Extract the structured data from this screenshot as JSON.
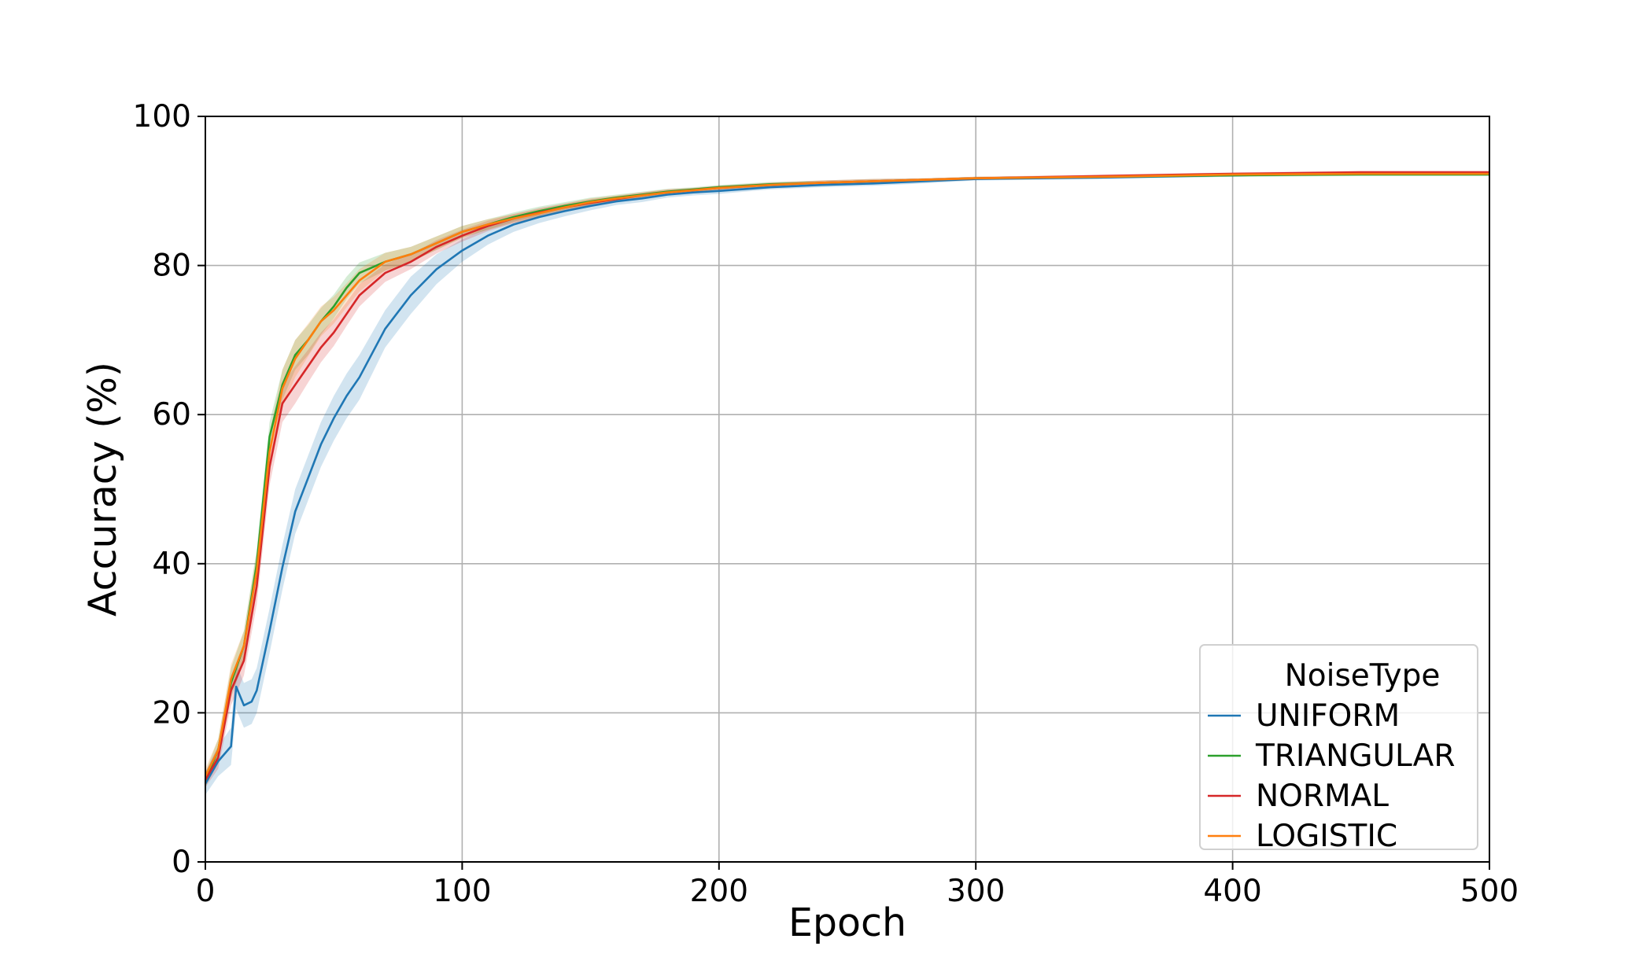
{
  "chart_data": {
    "type": "line",
    "title": "",
    "xlabel": "Epoch",
    "ylabel": "Accuracy (%)",
    "xlim": [
      0,
      500
    ],
    "ylim": [
      0,
      100
    ],
    "xticks": [
      "0",
      "100",
      "200",
      "300",
      "400",
      "500"
    ],
    "yticks": [
      "0",
      "20",
      "40",
      "60",
      "80",
      "100"
    ],
    "grid": true,
    "legend": {
      "title": "NoiseType",
      "placement": "lower right"
    },
    "confidence_band": true,
    "series": [
      {
        "name": "UNIFORM",
        "color": "#1f77b4",
        "x": [
          0,
          5,
          10,
          12,
          15,
          18,
          20,
          25,
          30,
          35,
          40,
          45,
          50,
          55,
          60,
          70,
          80,
          90,
          100,
          110,
          120,
          130,
          140,
          150,
          160,
          170,
          180,
          190,
          200,
          220,
          240,
          260,
          280,
          300,
          350,
          400,
          450,
          500
        ],
        "y": [
          10.5,
          13.5,
          15.5,
          23.5,
          21.0,
          21.5,
          23.0,
          31.0,
          39.5,
          47.0,
          51.5,
          56.0,
          59.5,
          62.5,
          65.0,
          71.5,
          76.0,
          79.5,
          82.0,
          84.0,
          85.5,
          86.5,
          87.3,
          88.0,
          88.6,
          89.0,
          89.5,
          89.8,
          90.0,
          90.5,
          90.8,
          91.0,
          91.3,
          91.6,
          91.8,
          92.1,
          92.3,
          92.3
        ],
        "band": [
          1.5,
          2.0,
          2.5,
          3.0,
          3.0,
          3.0,
          3.0,
          3.0,
          3.0,
          3.0,
          3.0,
          3.0,
          3.0,
          3.0,
          3.0,
          2.5,
          2.5,
          2.0,
          1.5,
          1.2,
          1.0,
          0.8,
          0.7,
          0.6,
          0.5,
          0.5,
          0.4,
          0.4,
          0.4,
          0.3,
          0.3,
          0.3,
          0.3,
          0.2,
          0.2,
          0.2,
          0.2,
          0.2
        ]
      },
      {
        "name": "TRIANGULAR",
        "color": "#2ca02c",
        "x": [
          0,
          5,
          10,
          15,
          20,
          25,
          30,
          35,
          40,
          45,
          50,
          55,
          60,
          70,
          80,
          90,
          100,
          110,
          120,
          130,
          140,
          150,
          160,
          170,
          180,
          190,
          200,
          220,
          240,
          260,
          280,
          300,
          350,
          400,
          450,
          500
        ],
        "y": [
          11.0,
          15.0,
          24.0,
          29.0,
          40.0,
          57.0,
          64.0,
          68.0,
          70.0,
          72.5,
          74.5,
          77.0,
          79.0,
          80.5,
          81.5,
          83.0,
          84.5,
          85.5,
          86.5,
          87.3,
          88.0,
          88.6,
          89.1,
          89.5,
          89.9,
          90.2,
          90.5,
          90.9,
          91.1,
          91.3,
          91.5,
          91.7,
          91.9,
          92.1,
          92.2,
          92.2
        ],
        "band": [
          1.0,
          1.5,
          2.0,
          2.0,
          2.0,
          2.0,
          2.0,
          2.0,
          2.0,
          1.8,
          1.6,
          1.5,
          1.4,
          1.2,
          1.0,
          0.9,
          0.8,
          0.7,
          0.6,
          0.6,
          0.5,
          0.5,
          0.4,
          0.4,
          0.4,
          0.3,
          0.3,
          0.3,
          0.3,
          0.3,
          0.2,
          0.2,
          0.2,
          0.2,
          0.2,
          0.2
        ]
      },
      {
        "name": "NORMAL",
        "color": "#d62728",
        "x": [
          0,
          5,
          10,
          15,
          20,
          25,
          30,
          35,
          40,
          45,
          50,
          55,
          60,
          70,
          80,
          90,
          100,
          110,
          120,
          130,
          140,
          150,
          160,
          170,
          180,
          190,
          200,
          220,
          240,
          260,
          280,
          300,
          350,
          400,
          450,
          500
        ],
        "y": [
          11.0,
          14.0,
          23.0,
          27.0,
          37.0,
          53.0,
          61.5,
          64.0,
          66.5,
          69.0,
          71.0,
          73.5,
          76.0,
          79.0,
          80.5,
          82.5,
          84.0,
          85.3,
          86.3,
          87.1,
          87.8,
          88.4,
          88.9,
          89.4,
          89.8,
          90.1,
          90.4,
          90.8,
          91.1,
          91.3,
          91.5,
          91.7,
          92.0,
          92.3,
          92.5,
          92.5
        ],
        "band": [
          1.0,
          1.5,
          2.0,
          2.0,
          2.5,
          2.5,
          2.5,
          2.5,
          2.2,
          2.0,
          1.8,
          1.6,
          1.5,
          1.2,
          1.0,
          0.9,
          0.8,
          0.7,
          0.6,
          0.6,
          0.5,
          0.5,
          0.4,
          0.4,
          0.4,
          0.3,
          0.3,
          0.3,
          0.3,
          0.3,
          0.2,
          0.2,
          0.2,
          0.2,
          0.2,
          0.2
        ]
      },
      {
        "name": "LOGISTIC",
        "color": "#ff7f0e",
        "x": [
          0,
          5,
          10,
          15,
          20,
          25,
          30,
          35,
          40,
          45,
          50,
          55,
          60,
          70,
          80,
          90,
          100,
          110,
          120,
          130,
          140,
          150,
          160,
          170,
          180,
          190,
          200,
          220,
          240,
          260,
          280,
          300,
          350,
          400,
          450,
          500
        ],
        "y": [
          11.5,
          15.0,
          24.5,
          29.0,
          39.0,
          55.0,
          63.5,
          67.5,
          70.0,
          72.5,
          74.0,
          76.0,
          78.0,
          80.5,
          81.5,
          83.0,
          84.5,
          85.5,
          86.3,
          87.0,
          87.8,
          88.5,
          89.0,
          89.4,
          89.8,
          90.1,
          90.4,
          90.8,
          91.1,
          91.3,
          91.5,
          91.7,
          91.9,
          92.2,
          92.3,
          92.3
        ],
        "band": [
          1.0,
          1.5,
          2.0,
          2.0,
          2.5,
          2.5,
          2.5,
          2.5,
          2.2,
          2.0,
          1.8,
          1.6,
          1.5,
          1.2,
          1.0,
          0.9,
          0.8,
          0.7,
          0.6,
          0.6,
          0.5,
          0.5,
          0.4,
          0.4,
          0.4,
          0.3,
          0.3,
          0.3,
          0.3,
          0.3,
          0.2,
          0.2,
          0.2,
          0.2,
          0.2,
          0.2
        ]
      }
    ]
  }
}
